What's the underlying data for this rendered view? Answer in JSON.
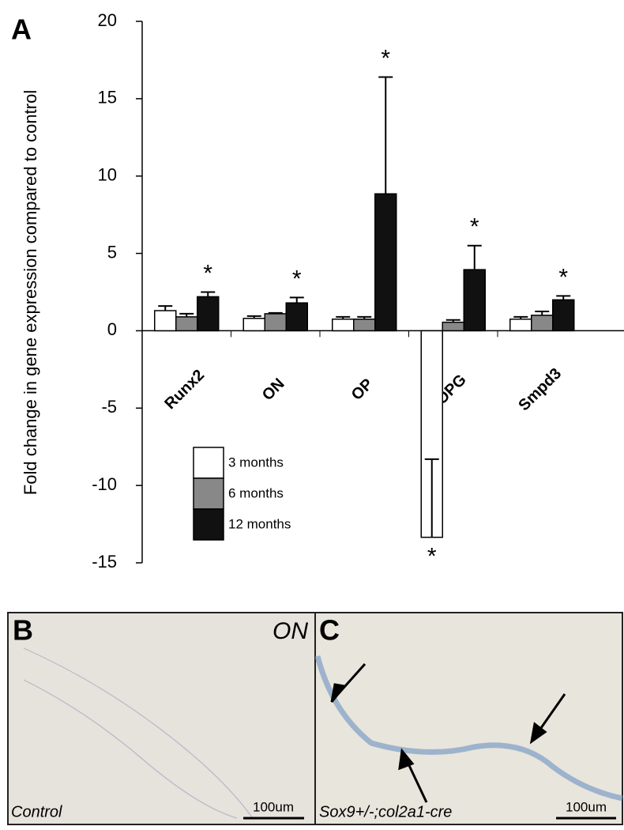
{
  "chart_data": {
    "type": "bar",
    "panel_label": "A",
    "y_label": "Fold change in gene expression compared to control",
    "categories": [
      "Runx2",
      "ON",
      "OP",
      "OPG",
      "Smpd3"
    ],
    "series": [
      {
        "name": "3 months",
        "color": "#ffffff",
        "values": [
          1.3,
          0.8,
          0.75,
          -13.35,
          0.75
        ],
        "errors": [
          0.3,
          0.15,
          0.15,
          5.05,
          0.15
        ],
        "significance": [
          null,
          null,
          null,
          "*",
          null
        ]
      },
      {
        "name": "6 months",
        "color": "#888888",
        "values": [
          0.9,
          1.1,
          0.75,
          0.55,
          1.0
        ],
        "errors": [
          0.2,
          0.05,
          0.15,
          0.15,
          0.25
        ],
        "significance": [
          null,
          null,
          null,
          null,
          null
        ]
      },
      {
        "name": "12 months",
        "color": "#111111",
        "values": [
          2.2,
          1.8,
          8.85,
          3.95,
          2.0
        ],
        "errors": [
          0.3,
          0.35,
          7.55,
          1.55,
          0.25
        ],
        "significance": [
          "*",
          "*",
          "*",
          "*",
          "*"
        ]
      }
    ],
    "ylim": [
      -15,
      20
    ],
    "yticks": [
      -15,
      -10,
      -5,
      0,
      5,
      10,
      15,
      20
    ],
    "legend": "bottom-left"
  },
  "panels": [
    {
      "label": "B",
      "stain": "ON",
      "caption": "Control",
      "scale_bar": "100um"
    },
    {
      "label": "C",
      "caption": "Sox9+/-;col2a1-cre",
      "scale_bar": "100um"
    }
  ]
}
